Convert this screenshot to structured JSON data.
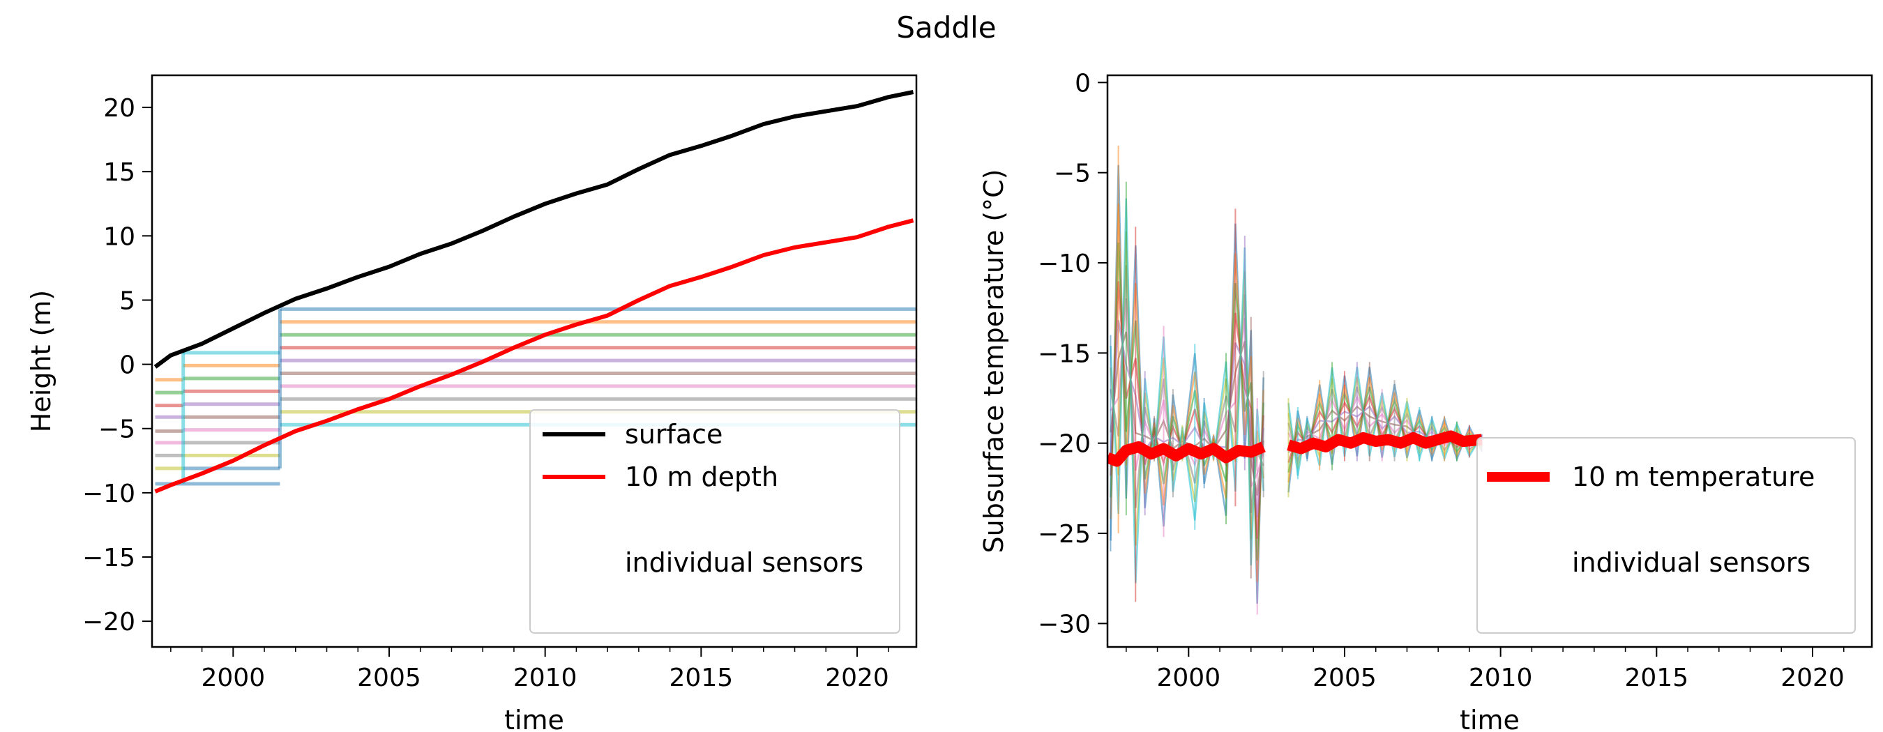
{
  "figure": {
    "title": "Saddle"
  },
  "chart_data": [
    {
      "type": "line",
      "xlabel": "time",
      "ylabel": "Height (m)",
      "xlim": [
        1997.4,
        2021.9
      ],
      "ylim": [
        -22.0,
        22.5
      ],
      "xticks": [
        2000,
        2005,
        2010,
        2015,
        2020
      ],
      "yticks": [
        -20,
        -15,
        -10,
        -5,
        0,
        5,
        10,
        15,
        20
      ],
      "grid": false,
      "legend": {
        "placement": "lower-right",
        "entries": [
          "surface",
          "10 m depth",
          "individual sensors"
        ]
      },
      "series": [
        {
          "name": "surface",
          "color": "#000000",
          "x": [
            1997.5,
            1998,
            1999,
            2000,
            2001,
            2002,
            2003,
            2004,
            2005,
            2006,
            2007,
            2008,
            2009,
            2010,
            2011,
            2012,
            2013,
            2014,
            2015,
            2016,
            2017,
            2018,
            2019,
            2020,
            2021,
            2021.8
          ],
          "values": [
            -0.2,
            0.7,
            1.6,
            2.8,
            4.0,
            5.1,
            5.9,
            6.8,
            7.6,
            8.6,
            9.4,
            10.4,
            11.5,
            12.5,
            13.3,
            14.0,
            15.2,
            16.3,
            17.0,
            17.8,
            18.7,
            19.3,
            19.7,
            20.1,
            20.8,
            21.2
          ]
        },
        {
          "name": "10 m depth",
          "color": "#ff0000",
          "x": [
            1997.5,
            1998,
            1999,
            2000,
            2001,
            2002,
            2003,
            2004,
            2005,
            2006,
            2007,
            2008,
            2009,
            2010,
            2011,
            2012,
            2013,
            2014,
            2015,
            2016,
            2017,
            2018,
            2019,
            2020,
            2021,
            2021.8
          ],
          "values": [
            -9.9,
            -9.4,
            -8.5,
            -7.5,
            -6.3,
            -5.2,
            -4.4,
            -3.5,
            -2.7,
            -1.7,
            -0.8,
            0.2,
            1.3,
            2.3,
            3.1,
            3.8,
            5.0,
            6.1,
            6.8,
            7.6,
            8.5,
            9.1,
            9.5,
            9.9,
            10.7,
            11.2
          ]
        }
      ],
      "sensor_series": [
        {
          "color": "#1f77b4",
          "x": [
            1997.5,
            2001.5
          ],
          "values": [
            -9.3,
            -9.3
          ]
        },
        {
          "color": "#17becf",
          "x": [
            1998.4,
            2001.5
          ],
          "values": [
            0.9,
            0.9
          ]
        },
        {
          "color": "#ff7f0e",
          "x": [
            1997.5,
            1998.4
          ],
          "values": [
            -1.2,
            -1.2
          ]
        },
        {
          "color": "#2ca02c",
          "x": [
            1997.5,
            1998.4
          ],
          "values": [
            -2.2,
            -2.2
          ]
        },
        {
          "color": "#d62728",
          "x": [
            1997.5,
            1998.4
          ],
          "values": [
            -3.2,
            -3.2
          ]
        },
        {
          "color": "#9467bd",
          "x": [
            1997.5,
            1998.4
          ],
          "values": [
            -4.1,
            -4.1
          ]
        },
        {
          "color": "#8c564b",
          "x": [
            1997.5,
            1998.4
          ],
          "values": [
            -5.2,
            -5.2
          ]
        },
        {
          "color": "#e377c2",
          "x": [
            1997.5,
            1998.4
          ],
          "values": [
            -6.1,
            -6.1
          ]
        },
        {
          "color": "#7f7f7f",
          "x": [
            1997.5,
            1998.4
          ],
          "values": [
            -7.1,
            -7.1
          ]
        },
        {
          "color": "#bcbd22",
          "x": [
            1997.5,
            1998.4
          ],
          "values": [
            -8.1,
            -8.1
          ]
        },
        {
          "color": "#ff7f0e",
          "x": [
            1998.4,
            2001.5
          ],
          "values": [
            -0.1,
            -0.1
          ]
        },
        {
          "color": "#2ca02c",
          "x": [
            1998.4,
            2001.5
          ],
          "values": [
            -1.1,
            -1.1
          ]
        },
        {
          "color": "#d62728",
          "x": [
            1998.4,
            2001.5
          ],
          "values": [
            -2.1,
            -2.1
          ]
        },
        {
          "color": "#9467bd",
          "x": [
            1998.4,
            2001.5
          ],
          "values": [
            -3.1,
            -3.1
          ]
        },
        {
          "color": "#8c564b",
          "x": [
            1998.4,
            2001.5
          ],
          "values": [
            -4.1,
            -4.1
          ]
        },
        {
          "color": "#e377c2",
          "x": [
            1998.4,
            2001.5
          ],
          "values": [
            -5.1,
            -5.1
          ]
        },
        {
          "color": "#7f7f7f",
          "x": [
            1998.4,
            2001.5
          ],
          "values": [
            -6.1,
            -6.1
          ]
        },
        {
          "color": "#bcbd22",
          "x": [
            1998.4,
            2001.5
          ],
          "values": [
            -7.1,
            -7.1
          ]
        },
        {
          "color": "#1f77b4",
          "x": [
            1998.4,
            2001.5
          ],
          "values": [
            -8.1,
            -8.1
          ]
        },
        {
          "color": "#1f77b4",
          "x": [
            2001.5,
            2021.9
          ],
          "values": [
            4.3,
            4.3
          ]
        },
        {
          "color": "#ff7f0e",
          "x": [
            2001.5,
            2021.9
          ],
          "values": [
            3.3,
            3.3
          ]
        },
        {
          "color": "#2ca02c",
          "x": [
            2001.5,
            2021.9
          ],
          "values": [
            2.3,
            2.3
          ]
        },
        {
          "color": "#d62728",
          "x": [
            2001.5,
            2021.9
          ],
          "values": [
            1.3,
            1.3
          ]
        },
        {
          "color": "#9467bd",
          "x": [
            2001.5,
            2021.9
          ],
          "values": [
            0.3,
            0.3
          ]
        },
        {
          "color": "#8c564b",
          "x": [
            2001.5,
            2021.9
          ],
          "values": [
            -0.7,
            -0.7
          ]
        },
        {
          "color": "#e377c2",
          "x": [
            2001.5,
            2021.9
          ],
          "values": [
            -1.7,
            -1.7
          ]
        },
        {
          "color": "#7f7f7f",
          "x": [
            2001.5,
            2021.9
          ],
          "values": [
            -2.7,
            -2.7
          ]
        },
        {
          "color": "#bcbd22",
          "x": [
            2001.5,
            2021.9
          ],
          "values": [
            -3.7,
            -3.7
          ]
        },
        {
          "color": "#17becf",
          "x": [
            2001.5,
            2021.9
          ],
          "values": [
            -4.7,
            -4.7
          ]
        }
      ]
    },
    {
      "type": "line",
      "xlabel": "time",
      "ylabel": "Subsurface temperature (°C)",
      "xlim": [
        1997.4,
        2021.9
      ],
      "ylim": [
        -31.3,
        0.4
      ],
      "xticks": [
        2000,
        2005,
        2010,
        2015,
        2020
      ],
      "yticks": [
        0,
        -5,
        -10,
        -15,
        -20,
        -25,
        -30
      ],
      "grid": false,
      "legend": {
        "placement": "lower-right",
        "entries": [
          "10 m temperature",
          "individual sensors"
        ]
      },
      "series": [
        {
          "name": "10 m temperature",
          "color": "#ff0000",
          "segments": [
            {
              "x": [
                1997.4,
                1997.7,
                1998.0,
                1998.4,
                1998.8,
                1999.2,
                1999.6,
                2000.0,
                2000.4,
                2000.8,
                2001.2,
                2001.6,
                2002.0,
                2002.4
              ],
              "values": [
                -20.8,
                -21.0,
                -20.4,
                -20.2,
                -20.6,
                -20.3,
                -20.7,
                -20.3,
                -20.6,
                -20.3,
                -20.8,
                -20.4,
                -20.5,
                -20.2
              ]
            },
            {
              "x": [
                2003.2,
                2003.6,
                2004.0,
                2004.4,
                2004.8,
                2005.2,
                2005.6,
                2006.0,
                2006.4,
                2006.8,
                2007.2,
                2007.6,
                2008.0,
                2008.4,
                2008.8,
                2009.4
              ],
              "values": [
                -20.1,
                -20.3,
                -20.0,
                -20.2,
                -19.8,
                -20.0,
                -19.7,
                -19.9,
                -19.8,
                -20.0,
                -19.7,
                -20.0,
                -19.8,
                -19.6,
                -19.9,
                -19.8
              ]
            }
          ]
        }
      ],
      "sensor_colors": [
        "#1f77b4",
        "#ff7f0e",
        "#2ca02c",
        "#d62728",
        "#9467bd",
        "#8c564b",
        "#e377c2",
        "#7f7f7f",
        "#bcbd22",
        "#17becf"
      ],
      "sensor_envelope": [
        {
          "x": 1997.5,
          "min": -26.0,
          "max": -14.0
        },
        {
          "x": 1997.75,
          "min": -25.0,
          "max": -3.5
        },
        {
          "x": 1998.0,
          "min": -24.0,
          "max": -5.5
        },
        {
          "x": 1998.3,
          "min": -28.8,
          "max": -8.0
        },
        {
          "x": 1998.6,
          "min": -24.0,
          "max": -16.0
        },
        {
          "x": 1998.9,
          "min": -21.0,
          "max": -18.5
        },
        {
          "x": 1999.2,
          "min": -25.2,
          "max": -13.5
        },
        {
          "x": 1999.5,
          "min": -23.0,
          "max": -17.0
        },
        {
          "x": 1999.8,
          "min": -21.0,
          "max": -19.0
        },
        {
          "x": 2000.2,
          "min": -24.8,
          "max": -14.5
        },
        {
          "x": 2000.5,
          "min": -22.5,
          "max": -17.5
        },
        {
          "x": 2000.8,
          "min": -21.0,
          "max": -19.5
        },
        {
          "x": 2001.2,
          "min": -24.5,
          "max": -15.0
        },
        {
          "x": 2001.5,
          "min": -23.5,
          "max": -7.0
        },
        {
          "x": 2001.8,
          "min": -21.5,
          "max": -8.5
        },
        {
          "x": 2002.0,
          "min": -27.5,
          "max": -13.0
        },
        {
          "x": 2002.2,
          "min": -29.5,
          "max": -17.5
        },
        {
          "x": 2002.4,
          "min": -23.0,
          "max": -16.0
        },
        {
          "x": 2003.2,
          "min": -23.0,
          "max": -17.5
        },
        {
          "x": 2003.5,
          "min": -22.0,
          "max": -18.0
        },
        {
          "x": 2003.8,
          "min": -21.0,
          "max": -18.5
        },
        {
          "x": 2004.2,
          "min": -21.5,
          "max": -16.5
        },
        {
          "x": 2004.6,
          "min": -21.5,
          "max": -15.5
        },
        {
          "x": 2005.0,
          "min": -21.0,
          "max": -16.0
        },
        {
          "x": 2005.4,
          "min": -21.0,
          "max": -15.5
        },
        {
          "x": 2005.8,
          "min": -21.0,
          "max": -15.5
        },
        {
          "x": 2006.2,
          "min": -21.0,
          "max": -17.0
        },
        {
          "x": 2006.6,
          "min": -21.0,
          "max": -16.5
        },
        {
          "x": 2007.0,
          "min": -21.0,
          "max": -17.5
        },
        {
          "x": 2007.4,
          "min": -21.0,
          "max": -18.0
        },
        {
          "x": 2007.8,
          "min": -21.0,
          "max": -18.5
        },
        {
          "x": 2008.2,
          "min": -21.0,
          "max": -18.5
        },
        {
          "x": 2008.6,
          "min": -21.0,
          "max": -18.8
        },
        {
          "x": 2009.0,
          "min": -20.8,
          "max": -19.0
        },
        {
          "x": 2009.4,
          "min": -20.5,
          "max": -19.5
        }
      ]
    }
  ]
}
